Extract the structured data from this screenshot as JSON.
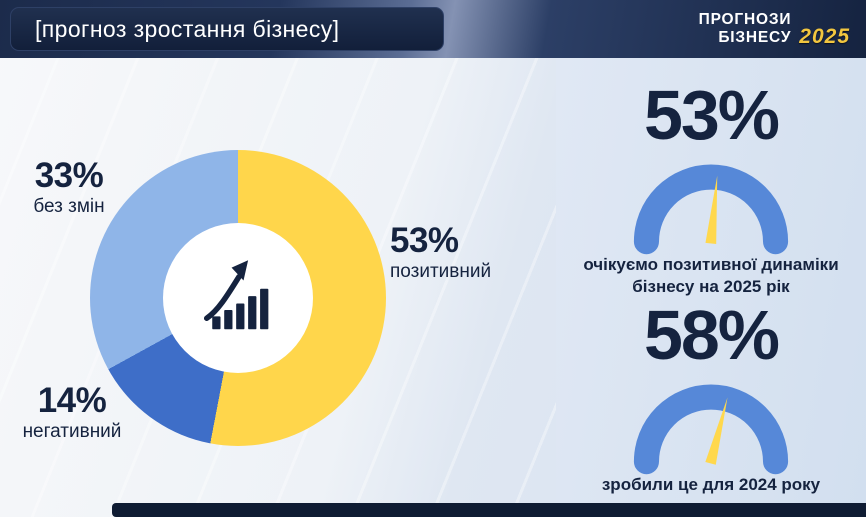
{
  "header": {
    "title": "[прогноз зростання бізнесу]",
    "brand": {
      "line1": "ПРОГНОЗИ",
      "line2": "БІЗНЕСУ",
      "year": "2025"
    }
  },
  "colors": {
    "navy": "#15233F",
    "yellow": "#FFD64B",
    "light_blue": "#8FB5E8",
    "mid_blue": "#3E6EC8",
    "gauge_blue": "#5688D8",
    "needle_yellow": "#FFD84D",
    "panel_bg": "#D9E3F2",
    "header_bg": "#1C2B4B"
  },
  "chart_data": [
    {
      "type": "pie",
      "title": "прогноз зростання бізнесу",
      "labels": [
        "позитивний",
        "без змін",
        "негативний"
      ],
      "values": [
        53,
        33,
        14
      ],
      "colors": [
        "#FFD64B",
        "#8FB5E8",
        "#3E6EC8"
      ],
      "draw_order": [
        0,
        2,
        1
      ],
      "donut_hole": true,
      "center_icon": "growth-bars-arrow"
    },
    {
      "type": "gauge",
      "value": 53,
      "range": [
        0,
        100
      ],
      "label": "очікуємо позитивної динаміки бізнесу на 2025 рік"
    },
    {
      "type": "gauge",
      "value": 58,
      "range": [
        0,
        100
      ],
      "label": "зробили це для 2024 року"
    }
  ],
  "donut_labels": [
    {
      "pct": "53%",
      "name": "позитивний"
    },
    {
      "pct": "33%",
      "name": "без змін"
    },
    {
      "pct": "14%",
      "name": "негативний"
    }
  ],
  "gauges": [
    {
      "value": "53%",
      "caption": "очікуємо позитивної динаміки\nбізнесу на 2025 рік"
    },
    {
      "value": "58%",
      "caption": "зробили це для 2024 року"
    }
  ]
}
